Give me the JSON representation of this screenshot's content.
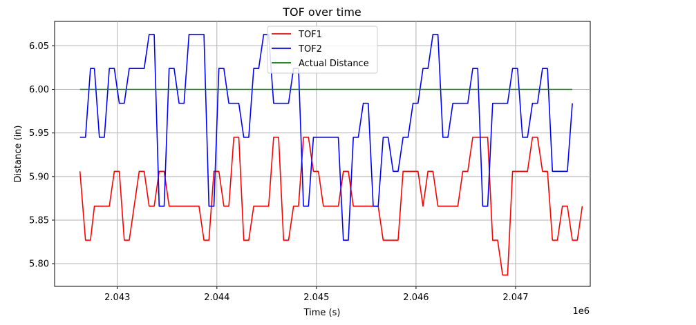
{
  "chart_data": {
    "type": "line",
    "title": "TOF over time",
    "xlabel": "Time (s)",
    "ylabel": "Distance (in)",
    "x_offset_label": "1e6",
    "xlim": [
      2.04237,
      2.04775
    ],
    "ylim": [
      5.774,
      6.078
    ],
    "x_ticks": [
      2.043,
      2.044,
      2.045,
      2.046,
      2.047
    ],
    "x_tick_labels": [
      "2.043",
      "2.044",
      "2.045",
      "2.046",
      "2.047"
    ],
    "y_ticks": [
      5.8,
      5.85,
      5.9,
      5.95,
      6.0,
      6.05
    ],
    "y_tick_labels": [
      "5.80",
      "5.85",
      "5.90",
      "5.95",
      "6.00",
      "6.05"
    ],
    "grid": true,
    "legend_position": "top-center",
    "series": [
      {
        "name": "TOF1",
        "color": "#ff0000",
        "points": [
          [
            2.042625,
            5.906
          ],
          [
            2.04268,
            5.827
          ],
          [
            2.04273,
            5.827
          ],
          [
            2.04277,
            5.866
          ],
          [
            2.04292,
            5.866
          ],
          [
            2.04297,
            5.906
          ],
          [
            2.04302,
            5.906
          ],
          [
            2.04307,
            5.827
          ],
          [
            2.04312,
            5.827
          ],
          [
            2.04322,
            5.906
          ],
          [
            2.04327,
            5.906
          ],
          [
            2.04332,
            5.866
          ],
          [
            2.04337,
            5.866
          ],
          [
            2.04342,
            5.906
          ],
          [
            2.04347,
            5.906
          ],
          [
            2.04352,
            5.866
          ],
          [
            2.04382,
            5.866
          ],
          [
            2.04387,
            5.827
          ],
          [
            2.04392,
            5.827
          ],
          [
            2.04397,
            5.906
          ],
          [
            2.04402,
            5.906
          ],
          [
            2.04407,
            5.866
          ],
          [
            2.04412,
            5.866
          ],
          [
            2.04417,
            5.945
          ],
          [
            2.04422,
            5.945
          ],
          [
            2.04427,
            5.827
          ],
          [
            2.04432,
            5.827
          ],
          [
            2.04437,
            5.866
          ],
          [
            2.04452,
            5.866
          ],
          [
            2.04457,
            5.945
          ],
          [
            2.04462,
            5.945
          ],
          [
            2.04467,
            5.827
          ],
          [
            2.04472,
            5.827
          ],
          [
            2.04477,
            5.866
          ],
          [
            2.04482,
            5.866
          ],
          [
            2.04487,
            5.945
          ],
          [
            2.04492,
            5.945
          ],
          [
            2.04497,
            5.906
          ],
          [
            2.04502,
            5.906
          ],
          [
            2.04507,
            5.866
          ],
          [
            2.04522,
            5.866
          ],
          [
            2.04527,
            5.906
          ],
          [
            2.04532,
            5.906
          ],
          [
            2.04537,
            5.866
          ],
          [
            2.04562,
            5.866
          ],
          [
            2.04567,
            5.827
          ],
          [
            2.04582,
            5.827
          ],
          [
            2.04587,
            5.906
          ],
          [
            2.04602,
            5.906
          ],
          [
            2.04607,
            5.866
          ],
          [
            2.04612,
            5.906
          ],
          [
            2.04617,
            5.906
          ],
          [
            2.04622,
            5.866
          ],
          [
            2.04642,
            5.866
          ],
          [
            2.04647,
            5.906
          ],
          [
            2.04652,
            5.906
          ],
          [
            2.04657,
            5.945
          ],
          [
            2.04672,
            5.945
          ],
          [
            2.04677,
            5.827
          ],
          [
            2.04682,
            5.827
          ],
          [
            2.04687,
            5.787
          ],
          [
            2.04692,
            5.787
          ],
          [
            2.04697,
            5.906
          ],
          [
            2.04712,
            5.906
          ],
          [
            2.04717,
            5.945
          ],
          [
            2.04722,
            5.945
          ],
          [
            2.04727,
            5.906
          ],
          [
            2.04732,
            5.906
          ],
          [
            2.04737,
            5.827
          ],
          [
            2.04742,
            5.827
          ],
          [
            2.04747,
            5.866
          ],
          [
            2.04752,
            5.866
          ],
          [
            2.04757,
            5.827
          ],
          [
            2.04762,
            5.827
          ],
          [
            2.04767,
            5.866
          ]
        ]
      },
      {
        "name": "TOF2",
        "color": "#0000ff",
        "points": [
          [
            2.042625,
            5.945
          ],
          [
            2.04268,
            5.945
          ],
          [
            2.04273,
            6.024
          ],
          [
            2.04277,
            6.024
          ],
          [
            2.04282,
            5.945
          ],
          [
            2.04287,
            5.945
          ],
          [
            2.04292,
            6.024
          ],
          [
            2.04297,
            6.024
          ],
          [
            2.04302,
            5.984
          ],
          [
            2.04307,
            5.984
          ],
          [
            2.04312,
            6.024
          ],
          [
            2.04327,
            6.024
          ],
          [
            2.04332,
            6.063
          ],
          [
            2.04337,
            6.063
          ],
          [
            2.04342,
            5.866
          ],
          [
            2.04347,
            5.866
          ],
          [
            2.04352,
            6.024
          ],
          [
            2.04357,
            6.024
          ],
          [
            2.04362,
            5.984
          ],
          [
            2.04367,
            5.984
          ],
          [
            2.04372,
            6.063
          ],
          [
            2.04387,
            6.063
          ],
          [
            2.04392,
            5.866
          ],
          [
            2.04397,
            5.866
          ],
          [
            2.04402,
            6.024
          ],
          [
            2.04407,
            6.024
          ],
          [
            2.04412,
            5.984
          ],
          [
            2.04422,
            5.984
          ],
          [
            2.04427,
            5.945
          ],
          [
            2.04432,
            5.945
          ],
          [
            2.04437,
            6.024
          ],
          [
            2.04442,
            6.024
          ],
          [
            2.04447,
            6.063
          ],
          [
            2.04452,
            6.063
          ],
          [
            2.04457,
            5.984
          ],
          [
            2.04472,
            5.984
          ],
          [
            2.04477,
            6.024
          ],
          [
            2.04482,
            6.024
          ],
          [
            2.04487,
            5.866
          ],
          [
            2.04492,
            5.866
          ],
          [
            2.04497,
            5.945
          ],
          [
            2.04522,
            5.945
          ],
          [
            2.04527,
            5.827
          ],
          [
            2.04532,
            5.827
          ],
          [
            2.04537,
            5.945
          ],
          [
            2.04542,
            5.945
          ],
          [
            2.04547,
            5.984
          ],
          [
            2.04552,
            5.984
          ],
          [
            2.04557,
            5.866
          ],
          [
            2.04562,
            5.866
          ],
          [
            2.04567,
            5.945
          ],
          [
            2.04572,
            5.945
          ],
          [
            2.04577,
            5.906
          ],
          [
            2.04582,
            5.906
          ],
          [
            2.04587,
            5.945
          ],
          [
            2.04592,
            5.945
          ],
          [
            2.04597,
            5.984
          ],
          [
            2.04602,
            5.984
          ],
          [
            2.04607,
            6.024
          ],
          [
            2.04612,
            6.024
          ],
          [
            2.04617,
            6.063
          ],
          [
            2.04622,
            6.063
          ],
          [
            2.04627,
            5.945
          ],
          [
            2.04632,
            5.945
          ],
          [
            2.04637,
            5.984
          ],
          [
            2.04652,
            5.984
          ],
          [
            2.04657,
            6.024
          ],
          [
            2.04662,
            6.024
          ],
          [
            2.04667,
            5.866
          ],
          [
            2.04672,
            5.866
          ],
          [
            2.04677,
            5.984
          ],
          [
            2.04692,
            5.984
          ],
          [
            2.04697,
            6.024
          ],
          [
            2.04702,
            6.024
          ],
          [
            2.04707,
            5.945
          ],
          [
            2.04712,
            5.945
          ],
          [
            2.04717,
            5.984
          ],
          [
            2.04722,
            5.984
          ],
          [
            2.04727,
            6.024
          ],
          [
            2.04732,
            6.024
          ],
          [
            2.04737,
            5.906
          ],
          [
            2.04752,
            5.906
          ],
          [
            2.04757,
            5.984
          ]
        ]
      },
      {
        "name": "Actual Distance",
        "color": "#008000",
        "points": [
          [
            2.042625,
            6.0
          ],
          [
            2.04757,
            6.0
          ]
        ]
      }
    ]
  }
}
